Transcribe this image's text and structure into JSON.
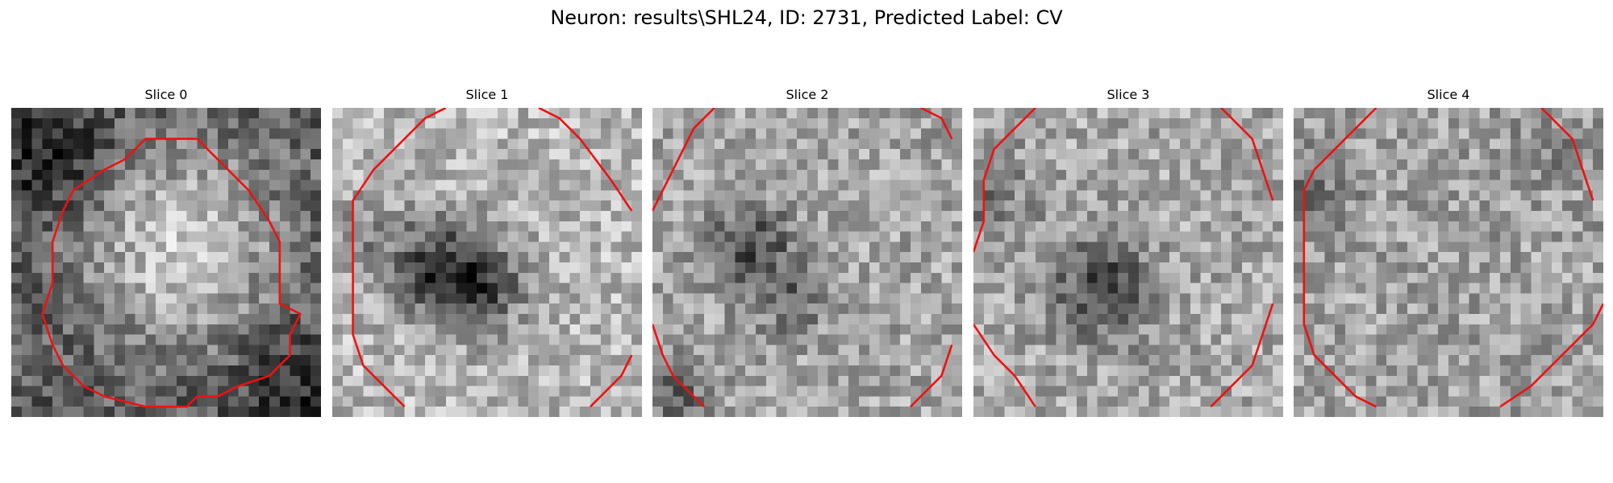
{
  "figure": {
    "title": "Neuron: results\\SHL24, ID: 2731, Predicted Label: CV"
  },
  "slices": [
    {
      "title": "Slice 0",
      "pattern": "bright-center"
    },
    {
      "title": "Slice 1",
      "pattern": "dark-blob"
    },
    {
      "title": "Slice 2",
      "pattern": "dark-cross"
    },
    {
      "title": "Slice 3",
      "pattern": "dark-center"
    },
    {
      "title": "Slice 4",
      "pattern": "uniform"
    }
  ],
  "contour_color": "#ee1111",
  "colormap": "grayscale"
}
